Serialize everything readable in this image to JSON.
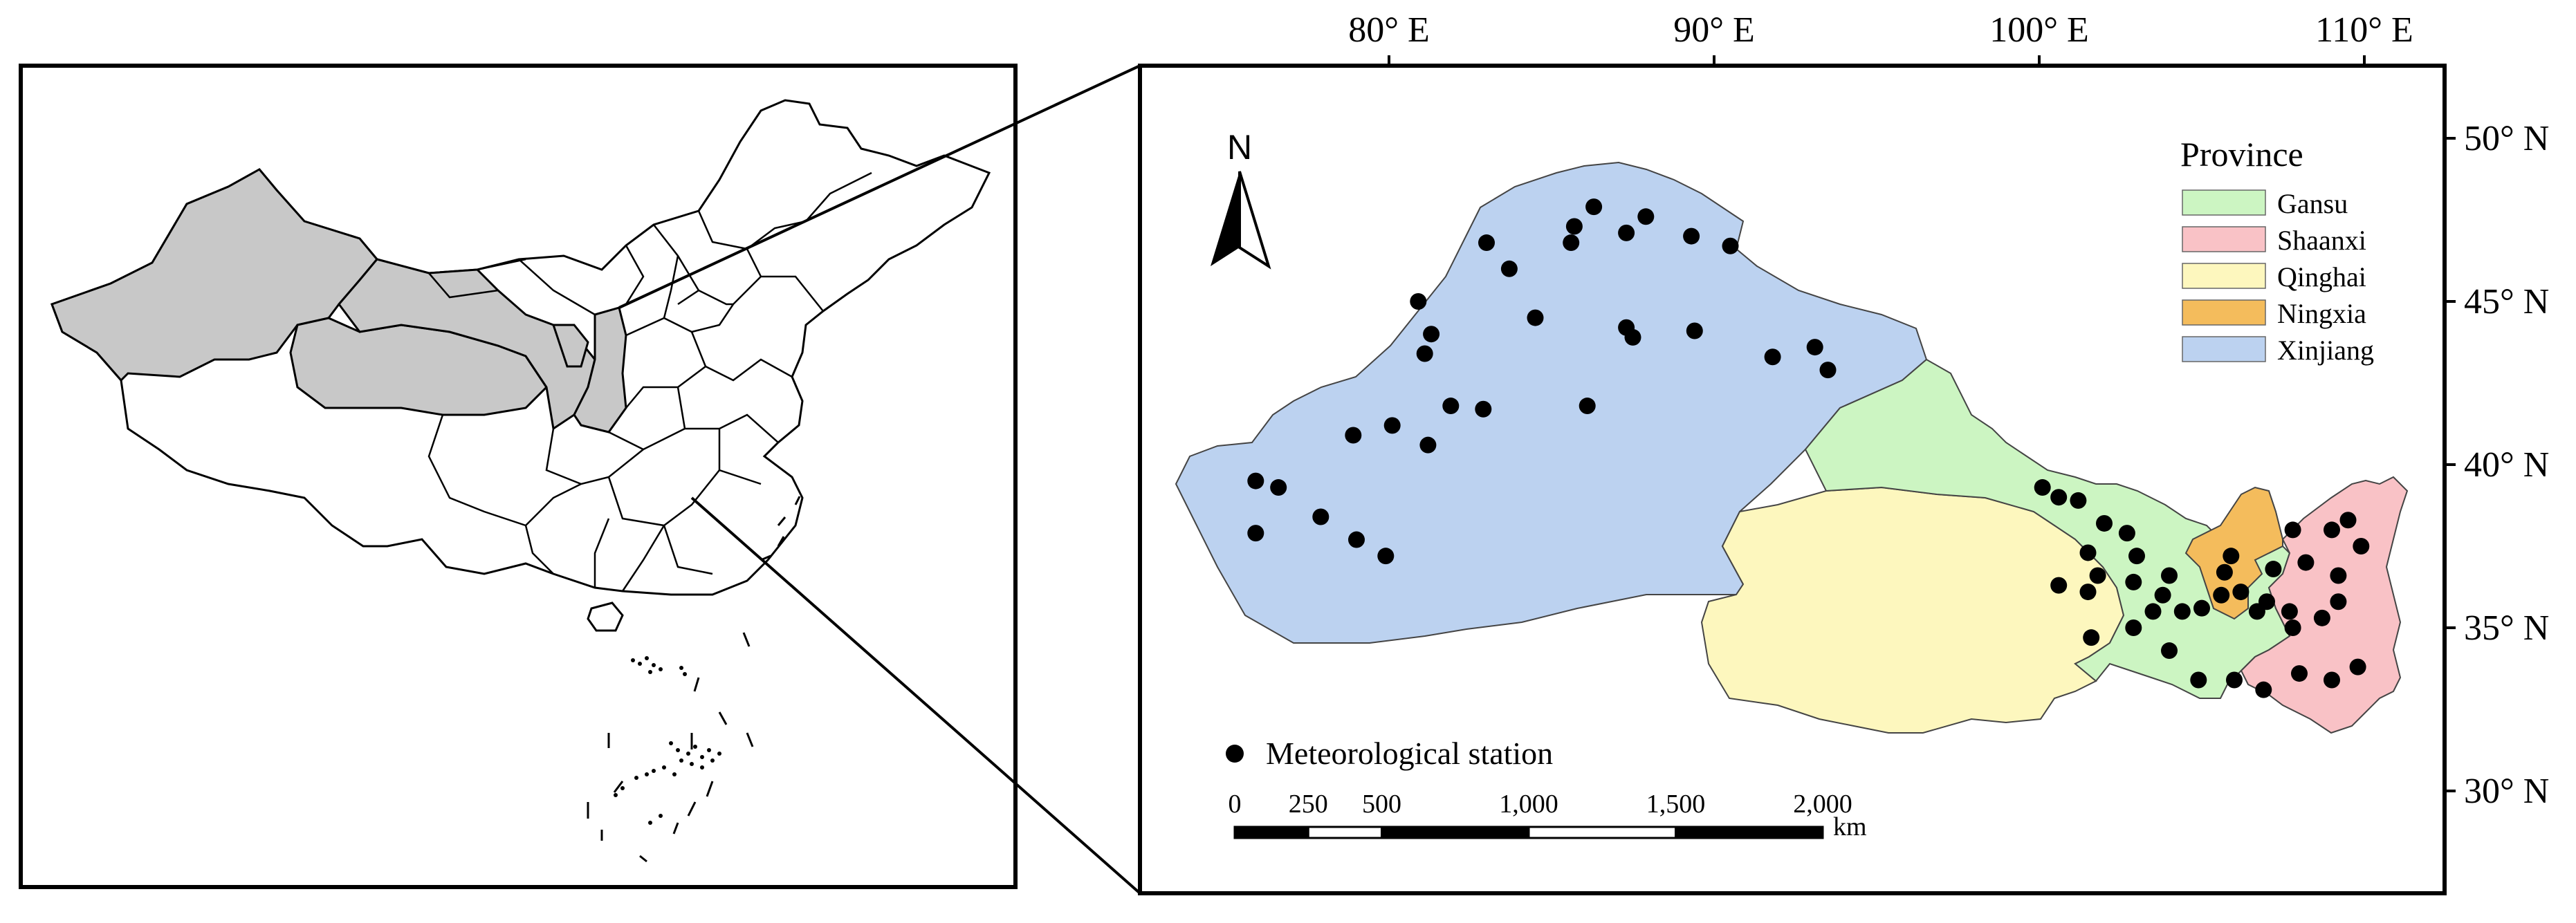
{
  "lon_ticks": [
    {
      "label": "80° E",
      "lon": 80
    },
    {
      "label": "90° E",
      "lon": 90
    },
    {
      "label": "100° E",
      "lon": 100
    },
    {
      "label": "110° E",
      "lon": 110
    }
  ],
  "lat_ticks": [
    {
      "label": "50° N",
      "lat": 50
    },
    {
      "label": "45° N",
      "lat": 45
    },
    {
      "label": "40° N",
      "lat": 40
    },
    {
      "label": "35° N",
      "lat": 35
    },
    {
      "label": "30° N",
      "lat": 30
    }
  ],
  "north_label": "N",
  "legend": {
    "title": "Province",
    "items": [
      {
        "label": "Gansu",
        "color": "#ccf5c2"
      },
      {
        "label": "Shaanxi",
        "color": "#f9c2c6"
      },
      {
        "label": "Qinghai",
        "color": "#fdf7be"
      },
      {
        "label": "Ningxia",
        "color": "#f4bc5c"
      },
      {
        "label": "Xinjiang",
        "color": "#bcd2f0"
      }
    ]
  },
  "station_label": "Meteorological station",
  "scale_bar": {
    "ticks": [
      {
        "label": "0",
        "km": 0
      },
      {
        "label": "250",
        "km": 250
      },
      {
        "label": "500",
        "km": 500
      },
      {
        "label": "1,000",
        "km": 1000
      },
      {
        "label": "1,500",
        "km": 1500
      },
      {
        "label": "2,000",
        "km": 2000
      }
    ],
    "unit": "km"
  },
  "province_colors": {
    "highlight": "#c8c8c8",
    "Xinjiang": "#bcd2f0",
    "Gansu": "#ccf5c2",
    "Qinghai": "#fdf7be",
    "Ningxia": "#f4bc5c",
    "Shaanxi": "#f9c2c6"
  },
  "stations": [
    [
      75.9,
      39.5
    ],
    [
      76.6,
      39.3
    ],
    [
      75.9,
      37.9
    ],
    [
      77.9,
      38.4
    ],
    [
      79.0,
      37.7
    ],
    [
      79.9,
      37.2
    ],
    [
      78.9,
      40.9
    ],
    [
      80.1,
      41.2
    ],
    [
      81.2,
      40.6
    ],
    [
      81.9,
      41.8
    ],
    [
      82.9,
      41.7
    ],
    [
      81.1,
      43.4
    ],
    [
      81.3,
      44.0
    ],
    [
      80.9,
      45.0
    ],
    [
      83.0,
      46.8
    ],
    [
      83.7,
      46.0
    ],
    [
      84.5,
      44.5
    ],
    [
      85.6,
      46.8
    ],
    [
      85.7,
      47.3
    ],
    [
      86.3,
      47.9
    ],
    [
      87.3,
      47.1
    ],
    [
      87.9,
      47.6
    ],
    [
      87.3,
      44.2
    ],
    [
      87.5,
      43.9
    ],
    [
      89.3,
      47.0
    ],
    [
      90.5,
      46.7
    ],
    [
      89.4,
      44.1
    ],
    [
      91.8,
      43.3
    ],
    [
      93.1,
      43.6
    ],
    [
      93.5,
      42.9
    ],
    [
      86.1,
      41.8
    ],
    [
      100.1,
      39.3
    ],
    [
      100.6,
      39.0
    ],
    [
      101.2,
      38.9
    ],
    [
      102.0,
      38.2
    ],
    [
      102.7,
      37.9
    ],
    [
      101.5,
      37.3
    ],
    [
      101.8,
      36.6
    ],
    [
      100.6,
      36.3
    ],
    [
      101.5,
      36.1
    ],
    [
      103.0,
      37.2
    ],
    [
      102.9,
      36.4
    ],
    [
      103.8,
      36.0
    ],
    [
      103.5,
      35.5
    ],
    [
      104.4,
      35.5
    ],
    [
      104.0,
      36.6
    ],
    [
      105.0,
      35.6
    ],
    [
      105.7,
      36.7
    ],
    [
      105.9,
      37.2
    ],
    [
      105.6,
      36.0
    ],
    [
      106.2,
      36.1
    ],
    [
      107.0,
      35.8
    ],
    [
      107.2,
      36.8
    ],
    [
      107.7,
      35.5
    ],
    [
      107.8,
      35.0
    ],
    [
      106.7,
      35.5
    ],
    [
      101.6,
      34.7
    ],
    [
      102.9,
      35.0
    ],
    [
      104.0,
      34.3
    ],
    [
      104.9,
      33.4
    ],
    [
      106.0,
      33.4
    ],
    [
      106.9,
      33.1
    ],
    [
      108.0,
      33.6
    ],
    [
      109.0,
      33.4
    ],
    [
      109.8,
      33.8
    ],
    [
      108.2,
      37.0
    ],
    [
      107.8,
      38.0
    ],
    [
      109.0,
      38.0
    ],
    [
      109.5,
      38.3
    ],
    [
      109.9,
      37.5
    ],
    [
      109.2,
      36.6
    ],
    [
      109.2,
      35.8
    ],
    [
      108.7,
      35.3
    ]
  ]
}
